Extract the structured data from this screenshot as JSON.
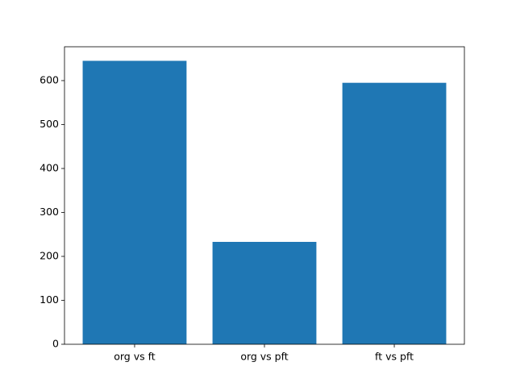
{
  "chart_data": {
    "type": "bar",
    "categories": [
      "org vs ft",
      "org vs pft",
      "ft vs pft"
    ],
    "values": [
      645,
      233,
      595
    ],
    "color": "#1f77b4",
    "ylim": [
      0,
      677
    ],
    "yticks": [
      0,
      100,
      200,
      300,
      400,
      500,
      600
    ],
    "grid": false
  }
}
